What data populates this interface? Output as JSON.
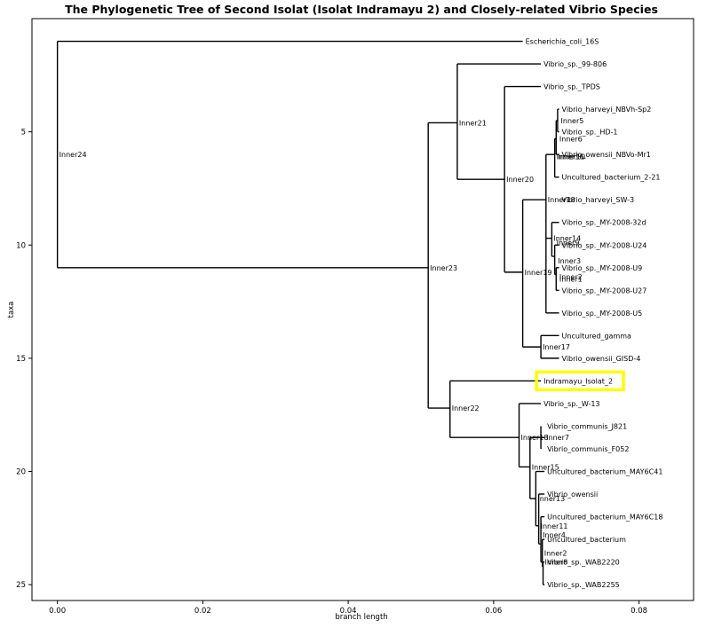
{
  "chart_data": {
    "type": "tree",
    "title": "The Phylogenetic Tree of Second Isolat (Isolat Indramayu 2) and Closely-related Vibrio Species",
    "xlabel": "branch length",
    "ylabel": "taxa",
    "xlim": [
      -0.0035,
      0.0875
    ],
    "ylim": [
      25.7,
      0.0
    ],
    "xticks": [
      0.0,
      0.02,
      0.04,
      0.06,
      0.08
    ],
    "xtick_labels": [
      "0.00",
      "0.02",
      "0.04",
      "0.06",
      "0.08"
    ],
    "yticks": [
      5,
      10,
      15,
      20,
      25
    ],
    "yticks_labels": [
      "5",
      "10",
      "15",
      "20",
      "25"
    ],
    "highlight": {
      "label": "Indramayu_Isolat_2",
      "color": "#ffff00"
    },
    "leaves": [
      {
        "name": "Escherichia_coli_16S",
        "x": 0.064,
        "y": 1
      },
      {
        "name": "Vibrio_sp._99-806",
        "x": 0.0665,
        "y": 2
      },
      {
        "name": "Vibrio_sp._TPDS",
        "x": 0.0665,
        "y": 3
      },
      {
        "name": "Vibrio_harveyi_NBVh-Sp2",
        "x": 0.069,
        "y": 4
      },
      {
        "name": "Vibrio_sp._HD-1",
        "x": 0.069,
        "y": 5
      },
      {
        "name": "Vibrio_owensii_NBVo-Mr1",
        "x": 0.069,
        "y": 6
      },
      {
        "name": "Uncultured_bacterium_2-21",
        "x": 0.069,
        "y": 7
      },
      {
        "name": "Vibrio_harveyi_SW-3",
        "x": 0.069,
        "y": 8
      },
      {
        "name": "Vibrio_sp._MY-2008-32d",
        "x": 0.069,
        "y": 9
      },
      {
        "name": "Vibrio_sp._MY-2008-U24",
        "x": 0.069,
        "y": 10
      },
      {
        "name": "Vibrio_sp._MY-2008-U9",
        "x": 0.069,
        "y": 11
      },
      {
        "name": "Vibrio_sp._MY-2008-U27",
        "x": 0.069,
        "y": 12
      },
      {
        "name": "Vibrio_sp._MY-2008-U5",
        "x": 0.069,
        "y": 13
      },
      {
        "name": "Uncultured_gamma",
        "x": 0.069,
        "y": 14
      },
      {
        "name": "Vibrio_owensii_GISD-4",
        "x": 0.069,
        "y": 15
      },
      {
        "name": "Indramayu_Isolat_2",
        "x": 0.0665,
        "y": 16
      },
      {
        "name": "Vibrio_sp._W-13",
        "x": 0.0665,
        "y": 17
      },
      {
        "name": "Vibrio_communis_J821",
        "x": 0.067,
        "y": 18
      },
      {
        "name": "Vibrio_communis_F052",
        "x": 0.067,
        "y": 19
      },
      {
        "name": "Uncultured_bacterium_MAY6C41",
        "x": 0.067,
        "y": 20
      },
      {
        "name": "Vibrio_owensii",
        "x": 0.067,
        "y": 21
      },
      {
        "name": "Uncultured_bacterium_MAY6C18",
        "x": 0.067,
        "y": 22
      },
      {
        "name": "Uncultured_bacterium",
        "x": 0.067,
        "y": 23
      },
      {
        "name": "Vibrio_sp._WAB2220",
        "x": 0.067,
        "y": 24
      },
      {
        "name": "Vibrio_sp._WAB2255",
        "x": 0.067,
        "y": 25
      }
    ],
    "internal_nodes": [
      {
        "name": "Inner24",
        "x": 0.0,
        "y": 6.0,
        "y_span": [
          1,
          11.0
        ]
      },
      {
        "name": "Inner23",
        "x": 0.051,
        "y": 11.0,
        "y_span": [
          4.6,
          17.2
        ]
      },
      {
        "name": "Inner21",
        "x": 0.055,
        "y": 4.6,
        "y_span": [
          2,
          7.1
        ]
      },
      {
        "name": "Inner20",
        "x": 0.0615,
        "y": 7.1,
        "y_span": [
          3,
          11.2
        ]
      },
      {
        "name": "Inner19",
        "x": 0.064,
        "y": 11.2,
        "y_span": [
          8.0,
          14.5
        ]
      },
      {
        "name": "Inner18",
        "x": 0.0672,
        "y": 8.0,
        "y_span": [
          6.0,
          9.7
        ]
      },
      {
        "name": "Inner16",
        "x": 0.0684,
        "y": 6.0,
        "y_span": [
          5.3,
          7
        ]
      },
      {
        "name": "Inner10",
        "x": 0.0686,
        "y": 5.3,
        "y_span": [
          4.5,
          6
        ]
      },
      {
        "name": "Inner6",
        "x": 0.0688,
        "y": 4.5,
        "y_span": [
          4,
          5
        ]
      },
      {
        "name": "Inner5",
        "x": 0.069,
        "y": 4.0,
        "y_span": [
          4,
          4
        ]
      },
      {
        "name": "Inner14",
        "x": 0.068,
        "y": 9.7,
        "y_span": [
          9,
          10.5
        ]
      },
      {
        "name": "Inner9",
        "x": 0.0684,
        "y": 10.5,
        "y_span": [
          10,
          11.3
        ]
      },
      {
        "name": "Inner3",
        "x": 0.0686,
        "y": 11.3,
        "y_span": [
          11,
          12
        ]
      },
      {
        "name": "Inner1",
        "x": 0.0688,
        "y": 11.6,
        "y_span": [
          11,
          12
        ]
      },
      {
        "name": "Inner2",
        "x": 0.0688,
        "y": 11.4,
        "y_span": [
          11,
          12
        ]
      },
      {
        "name": "Inner17",
        "x": 0.0665,
        "y": 14.5,
        "y_span": [
          14,
          15
        ]
      },
      {
        "name": "Inner22",
        "x": 0.054,
        "y": 17.2,
        "y_span": [
          16,
          18.5
        ]
      },
      {
        "name": "Inner18b",
        "x": 0.0635,
        "y": 18.5,
        "y_span": [
          17,
          19.8
        ]
      },
      {
        "name": "Inner7",
        "x": 0.067,
        "y": 18.5,
        "y_span": [
          18,
          19
        ]
      },
      {
        "name": "Inner15",
        "x": 0.065,
        "y": 19.8,
        "y_span": [
          18.5,
          21.2
        ]
      },
      {
        "name": "Inner13",
        "x": 0.0658,
        "y": 21.2,
        "y_span": [
          20,
          22.4
        ]
      },
      {
        "name": "Inner11",
        "x": 0.0662,
        "y": 22.4,
        "y_span": [
          21,
          23.2
        ]
      },
      {
        "name": "Inner4",
        "x": 0.0665,
        "y": 23.2,
        "y_span": [
          22,
          24.2
        ]
      },
      {
        "name": "Inner2b",
        "x": 0.0667,
        "y": 24.0,
        "y_span": [
          23,
          24.5
        ]
      },
      {
        "name": "Inner8",
        "x": 0.0668,
        "y": 24.2,
        "y_span": [
          24,
          25
        ]
      }
    ],
    "node_labels": [
      {
        "text": "Inner24",
        "x": 0.0,
        "y": 6.0
      },
      {
        "text": "Inner23",
        "x": 0.051,
        "y": 11.0
      },
      {
        "text": "Inner21",
        "x": 0.055,
        "y": 4.6
      },
      {
        "text": "Inner20",
        "x": 0.0615,
        "y": 7.1
      },
      {
        "text": "Inner19",
        "x": 0.064,
        "y": 11.2
      },
      {
        "text": "Inner18",
        "x": 0.0672,
        "y": 8.0
      },
      {
        "text": "Inner16",
        "x": 0.0684,
        "y": 6.1
      },
      {
        "text": "Inner10",
        "x": 0.0686,
        "y": 6.1
      },
      {
        "text": "Inner6",
        "x": 0.0688,
        "y": 5.3
      },
      {
        "text": "Inner5",
        "x": 0.069,
        "y": 4.5
      },
      {
        "text": "Inner14",
        "x": 0.068,
        "y": 9.7
      },
      {
        "text": "Inner9",
        "x": 0.0684,
        "y": 9.9
      },
      {
        "text": "Inner3",
        "x": 0.0686,
        "y": 10.7
      },
      {
        "text": "Inner1",
        "x": 0.0688,
        "y": 11.5
      },
      {
        "text": "Inner2",
        "x": 0.0688,
        "y": 11.4
      },
      {
        "text": "Inner17",
        "x": 0.0665,
        "y": 14.5
      },
      {
        "text": "Inner22",
        "x": 0.054,
        "y": 17.2
      },
      {
        "text": "Inner18",
        "x": 0.0635,
        "y": 18.5
      },
      {
        "text": "Inner7",
        "x": 0.067,
        "y": 18.5
      },
      {
        "text": "Inner15",
        "x": 0.065,
        "y": 19.8
      },
      {
        "text": "Inner13",
        "x": 0.0658,
        "y": 21.2
      },
      {
        "text": "Inner11",
        "x": 0.0662,
        "y": 22.4
      },
      {
        "text": "Inner4",
        "x": 0.0665,
        "y": 22.8
      },
      {
        "text": "Inner2",
        "x": 0.0667,
        "y": 23.6
      },
      {
        "text": "Inner8",
        "x": 0.0668,
        "y": 24.0
      }
    ],
    "edges": [
      {
        "x0": 0.0,
        "y0": 1,
        "x1": 0.064
      },
      {
        "x0": 0.0,
        "y0": 11.0,
        "x1": 0.051
      },
      {
        "x0": 0.051,
        "y0": 4.6,
        "x1": 0.055
      },
      {
        "x0": 0.051,
        "y0": 17.2,
        "x1": 0.054
      },
      {
        "x0": 0.055,
        "y0": 2,
        "x1": 0.0665
      },
      {
        "x0": 0.055,
        "y0": 7.1,
        "x1": 0.0615
      },
      {
        "x0": 0.0615,
        "y0": 3,
        "x1": 0.0665
      },
      {
        "x0": 0.0615,
        "y0": 11.2,
        "x1": 0.064
      },
      {
        "x0": 0.064,
        "y0": 8.0,
        "x1": 0.0672
      },
      {
        "x0": 0.064,
        "y0": 14.5,
        "x1": 0.0665
      },
      {
        "x0": 0.0672,
        "y0": 6.0,
        "x1": 0.0684
      },
      {
        "x0": 0.0672,
        "y0": 9.7,
        "x1": 0.068
      },
      {
        "x0": 0.0684,
        "y0": 5.3,
        "x1": 0.0686
      },
      {
        "x0": 0.0684,
        "y0": 7,
        "x1": 0.069
      },
      {
        "x0": 0.0686,
        "y0": 4.5,
        "x1": 0.0688
      },
      {
        "x0": 0.0686,
        "y0": 6,
        "x1": 0.069
      },
      {
        "x0": 0.0688,
        "y0": 4,
        "x1": 0.069
      },
      {
        "x0": 0.0688,
        "y0": 5,
        "x1": 0.069
      },
      {
        "x0": 0.068,
        "y0": 9,
        "x1": 0.069
      },
      {
        "x0": 0.068,
        "y0": 10.5,
        "x1": 0.0684
      },
      {
        "x0": 0.0684,
        "y0": 10,
        "x1": 0.069
      },
      {
        "x0": 0.0684,
        "y0": 11.3,
        "x1": 0.0686
      },
      {
        "x0": 0.0686,
        "y0": 11,
        "x1": 0.069
      },
      {
        "x0": 0.0686,
        "y0": 12,
        "x1": 0.069
      },
      {
        "x0": 0.0672,
        "y0": 13,
        "x1": 0.069
      },
      {
        "x0": 0.0665,
        "y0": 14,
        "x1": 0.069
      },
      {
        "x0": 0.0665,
        "y0": 15,
        "x1": 0.069
      },
      {
        "x0": 0.054,
        "y0": 16,
        "x1": 0.0665
      },
      {
        "x0": 0.054,
        "y0": 18.5,
        "x1": 0.0635
      },
      {
        "x0": 0.0635,
        "y0": 17,
        "x1": 0.0665
      },
      {
        "x0": 0.0635,
        "y0": 19.8,
        "x1": 0.065
      },
      {
        "x0": 0.0665,
        "y0": 18.5,
        "x1": 0.067
      },
      {
        "x0": 0.067,
        "y0": 18,
        "x1": 0.067
      },
      {
        "x0": 0.067,
        "y0": 19,
        "x1": 0.067
      },
      {
        "x0": 0.065,
        "y0": 18.5,
        "x1": 0.0665
      },
      {
        "x0": 0.065,
        "y0": 21.2,
        "x1": 0.0658
      },
      {
        "x0": 0.0658,
        "y0": 20,
        "x1": 0.067
      },
      {
        "x0": 0.0658,
        "y0": 22.4,
        "x1": 0.0662
      },
      {
        "x0": 0.0662,
        "y0": 21,
        "x1": 0.067
      },
      {
        "x0": 0.0662,
        "y0": 23.2,
        "x1": 0.0665
      },
      {
        "x0": 0.0665,
        "y0": 22,
        "x1": 0.067
      },
      {
        "x0": 0.0665,
        "y0": 24.0,
        "x1": 0.0667
      },
      {
        "x0": 0.0667,
        "y0": 23,
        "x1": 0.067
      },
      {
        "x0": 0.0667,
        "y0": 24.2,
        "x1": 0.0668
      },
      {
        "x0": 0.0668,
        "y0": 24,
        "x1": 0.067
      },
      {
        "x0": 0.0668,
        "y0": 25,
        "x1": 0.067
      }
    ],
    "verticals": [
      {
        "x": 0.0,
        "y0": 1,
        "y1": 11.0
      },
      {
        "x": 0.051,
        "y0": 4.6,
        "y1": 17.2
      },
      {
        "x": 0.055,
        "y0": 2,
        "y1": 7.1
      },
      {
        "x": 0.054,
        "y0": 16,
        "y1": 18.5
      },
      {
        "x": 0.0615,
        "y0": 3,
        "y1": 11.2
      },
      {
        "x": 0.064,
        "y0": 8.0,
        "y1": 14.5
      },
      {
        "x": 0.0672,
        "y0": 6.0,
        "y1": 13
      },
      {
        "x": 0.0684,
        "y0": 5.3,
        "y1": 7
      },
      {
        "x": 0.0686,
        "y0": 4.5,
        "y1": 6
      },
      {
        "x": 0.0688,
        "y0": 4,
        "y1": 5
      },
      {
        "x": 0.068,
        "y0": 9,
        "y1": 10.5
      },
      {
        "x": 0.0684,
        "y0": 10,
        "y1": 11.3
      },
      {
        "x": 0.0686,
        "y0": 11,
        "y1": 12
      },
      {
        "x": 0.0665,
        "y0": 14,
        "y1": 15
      },
      {
        "x": 0.0635,
        "y0": 17,
        "y1": 19.8
      },
      {
        "x": 0.0665,
        "y0": 18,
        "y1": 19
      },
      {
        "x": 0.065,
        "y0": 18.5,
        "y1": 21.2
      },
      {
        "x": 0.0658,
        "y0": 20,
        "y1": 22.4
      },
      {
        "x": 0.0662,
        "y0": 21,
        "y1": 23.2
      },
      {
        "x": 0.0665,
        "y0": 22,
        "y1": 24.0
      },
      {
        "x": 0.0667,
        "y0": 23,
        "y1": 24.2
      },
      {
        "x": 0.0668,
        "y0": 24,
        "y1": 25
      }
    ]
  }
}
